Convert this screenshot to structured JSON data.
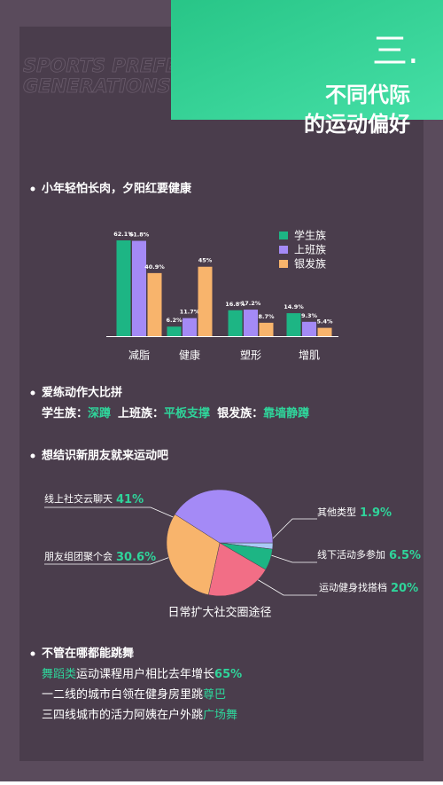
{
  "header": {
    "number": "三.",
    "title_line1": "不同代际",
    "title_line2": "的运动偏好",
    "watermark_line1": "SPORTS PREFERENCES ACROSS",
    "watermark_line2": "GENERATIONS"
  },
  "sections": [
    {
      "heading": "小年轻怕长肉，夕阳红要健康"
    },
    {
      "heading": "爱练动作大比拼",
      "parts": [
        "学生族：",
        "深蹲",
        "上班族：",
        "平板支撑",
        "银发族：",
        "靠墙静蹲"
      ]
    },
    {
      "heading": "想结识新朋友就来运动吧"
    },
    {
      "heading": "不管在哪都能跳舞",
      "lines": [
        [
          "舞蹈类",
          "运动课程用户相比去年增长",
          "65%"
        ],
        [
          "一二线的城市白领在健身房里跳",
          "尊巴"
        ],
        [
          "三四线城市的活力阿姨在户外跳",
          "广场舞"
        ]
      ]
    }
  ],
  "chart_data": [
    {
      "type": "bar",
      "categories": [
        "减脂",
        "健康",
        "塑形",
        "增肌"
      ],
      "series": [
        {
          "name": "学生族",
          "color": "#1db584",
          "values": [
            62.1,
            6.2,
            16.8,
            14.9
          ],
          "value_labels": [
            "62.1%",
            "6.2%",
            "16.8%",
            "14.9%"
          ]
        },
        {
          "name": "上班族",
          "color": "#a48af6",
          "values": [
            61.8,
            11.7,
            17.2,
            9.3
          ],
          "value_labels": [
            "61.8%",
            "11.7%",
            "17.2%",
            "9.3%"
          ]
        },
        {
          "name": "银发族",
          "color": "#f8b46c",
          "values": [
            40.9,
            45,
            8.7,
            5.4
          ],
          "value_labels": [
            "40.9%",
            "45%",
            "8.7%",
            "5.4%"
          ]
        }
      ]
    },
    {
      "type": "pie",
      "title": "日常扩大社交圈途径",
      "categories": [
        "其他类型",
        "线下活动多参加",
        "运动健身找搭档",
        "朋友组团聚个会",
        "线上社交云聊天"
      ],
      "values": [
        1.9,
        6.5,
        20,
        30.6,
        41
      ],
      "value_labels": [
        "1.9%",
        "6.5%",
        "20%",
        "30.6%",
        "41%"
      ],
      "colors": [
        "#a9c9f6",
        "#1db584",
        "#f26e86",
        "#f8b46c",
        "#a48af6"
      ]
    }
  ]
}
